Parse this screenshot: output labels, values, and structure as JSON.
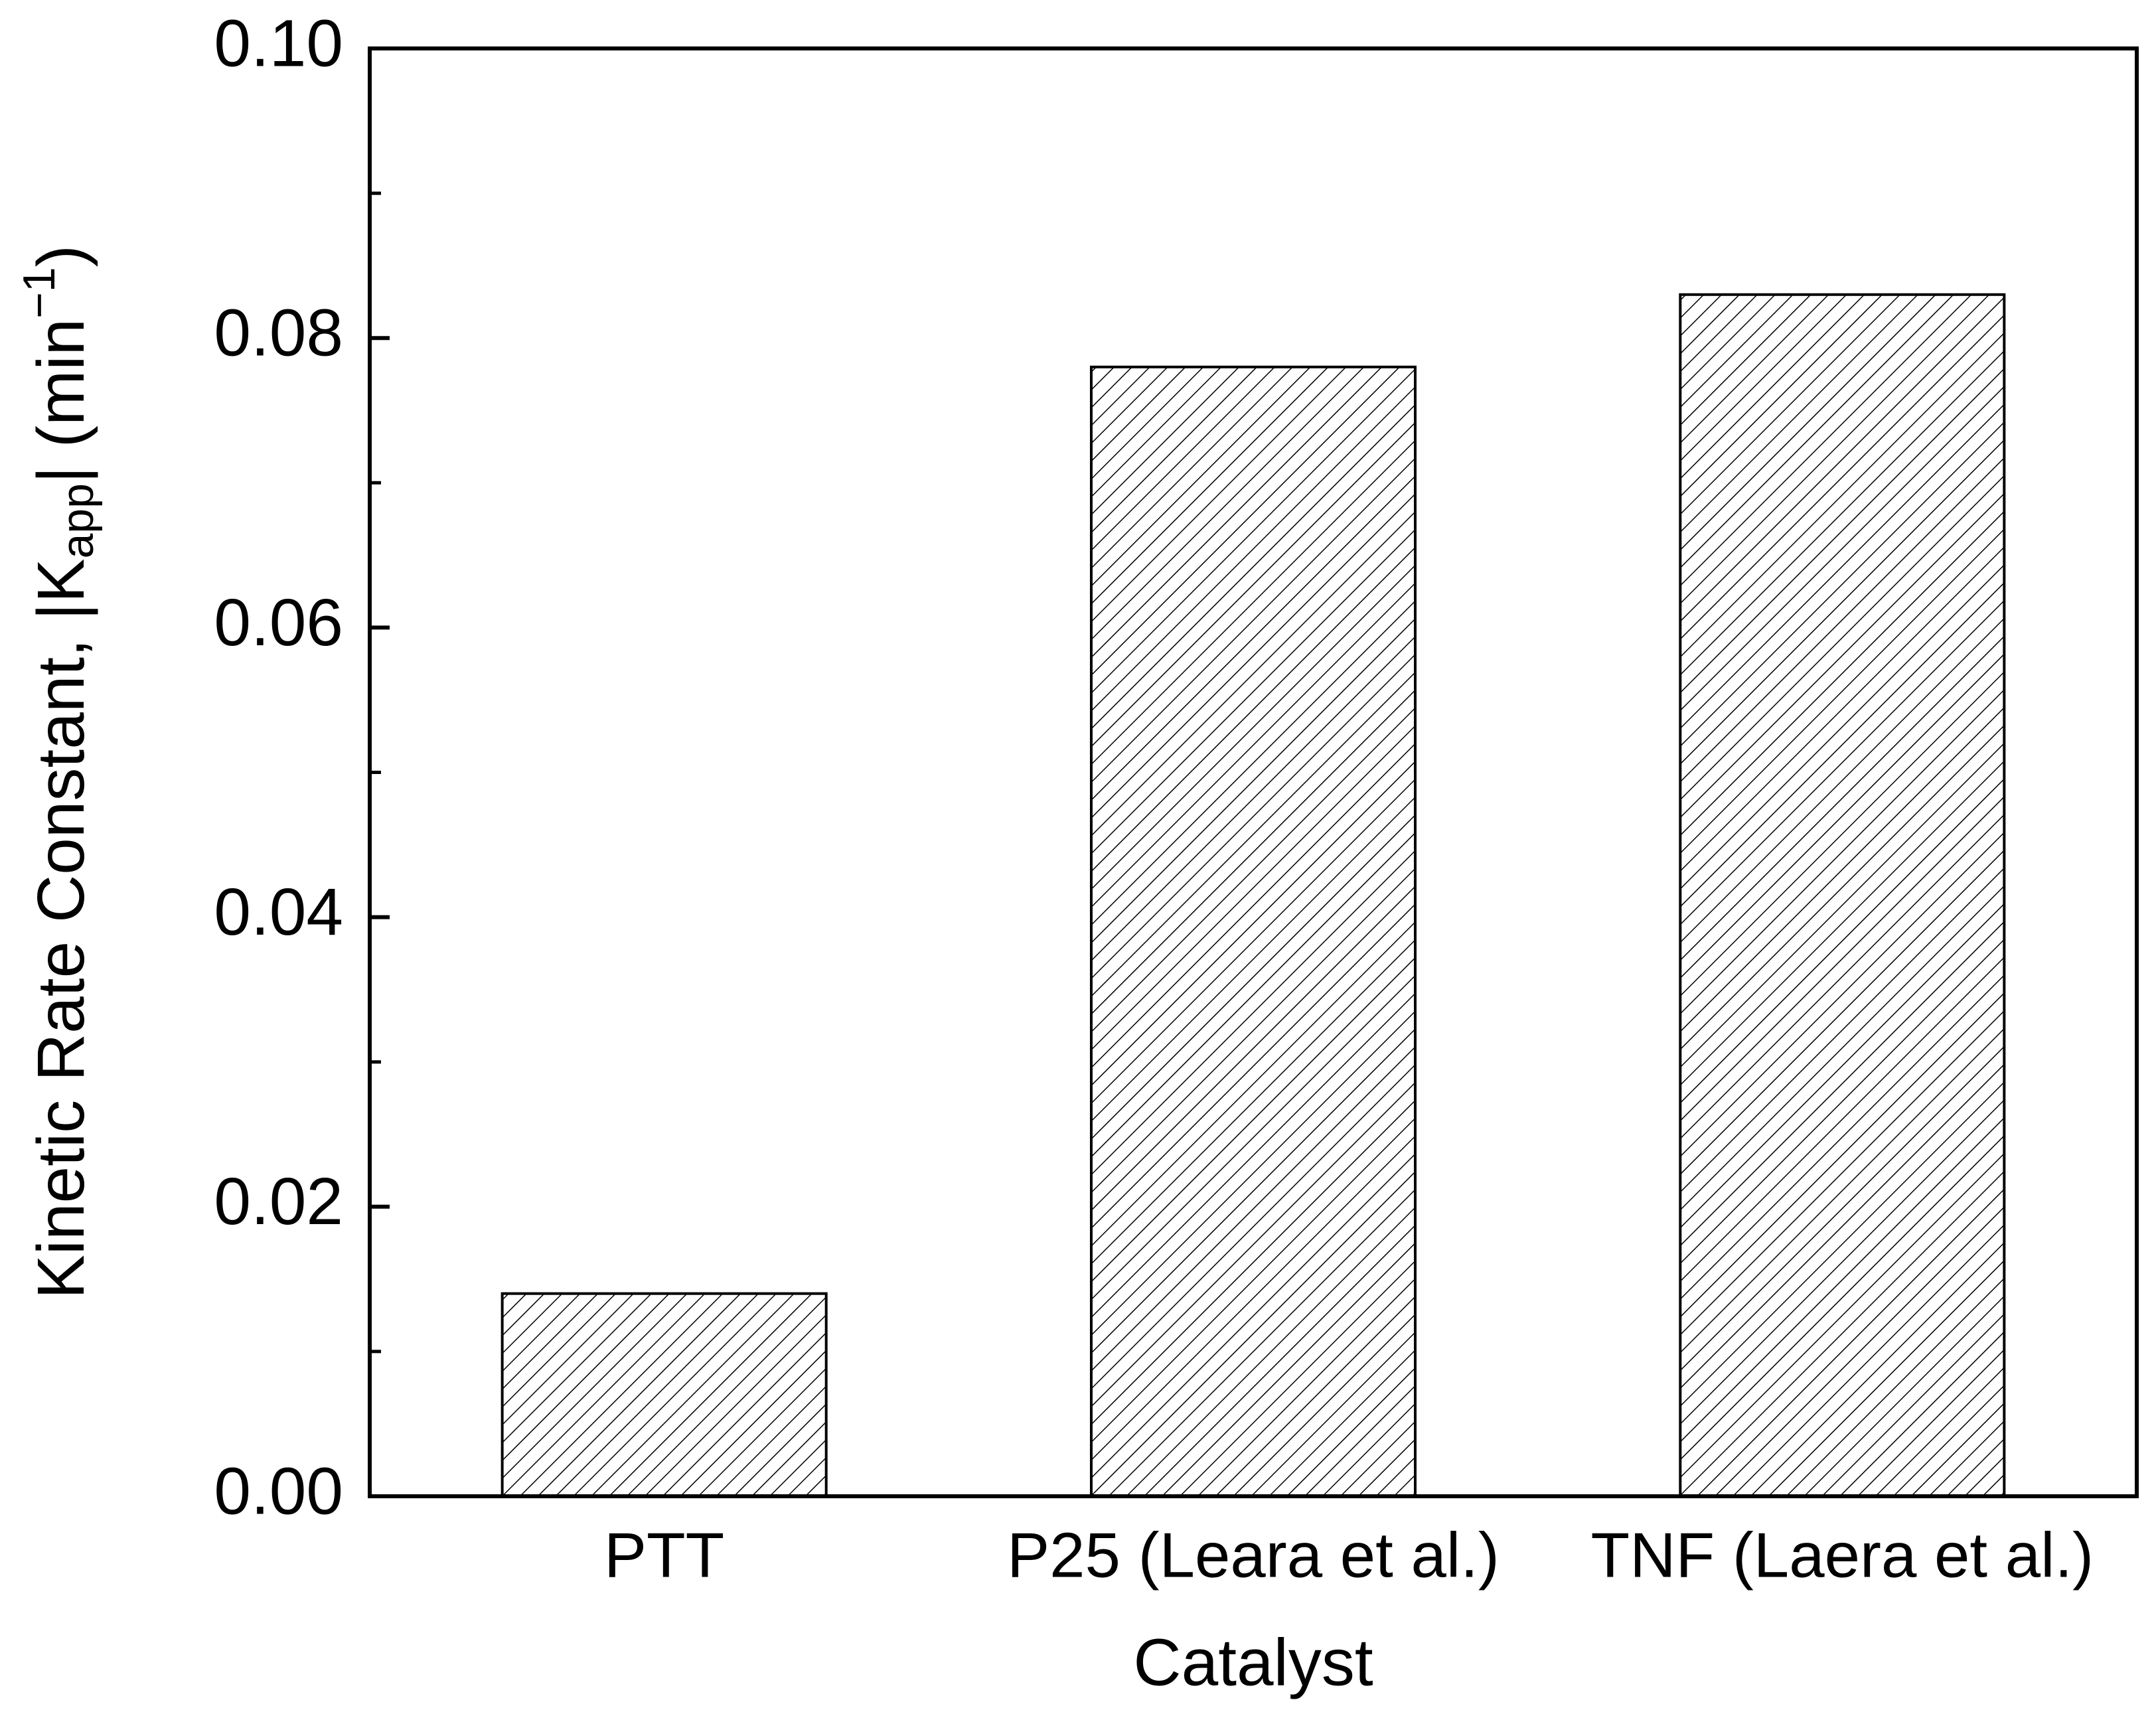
{
  "chart_data": {
    "type": "bar",
    "categories": [
      "PTT",
      "P25 (Leara et al.)",
      "TNF (Laera et al.)"
    ],
    "values": [
      0.014,
      0.078,
      0.083
    ],
    "color": "#000000",
    "hatch": true,
    "xlabel": "Catalyst",
    "ylabel": {
      "text": "Kinetic Rate Constant, |K",
      "sub": "app",
      "mid": "| (min",
      "sup": "−1",
      "end": ")"
    },
    "ylim": [
      0,
      0.1
    ],
    "yticks": [
      {
        "value": 0,
        "label": "0.00"
      },
      {
        "value": 0.02,
        "label": "0.02"
      },
      {
        "value": 0.04,
        "label": "0.04"
      },
      {
        "value": 0.06,
        "label": "0.06"
      },
      {
        "value": 0.08,
        "label": "0.08"
      },
      {
        "value": 0.1,
        "label": "0.10"
      }
    ],
    "minor_yticks": [
      0.01,
      0.03,
      0.05,
      0.07,
      0.09
    ]
  }
}
